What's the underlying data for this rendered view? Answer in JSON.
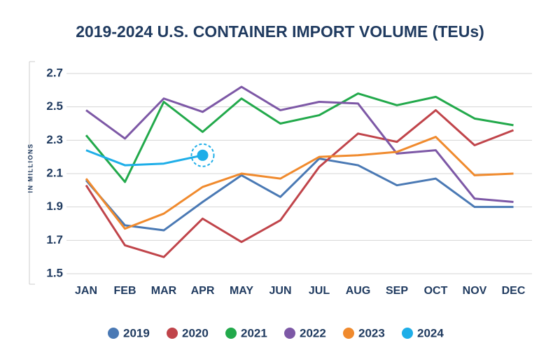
{
  "chart_data": {
    "type": "line",
    "title": "2019-2024 U.S. CONTAINER IMPORT VOLUME (TEUs)",
    "y_label": "IN MILLIONS",
    "categories": [
      "JAN",
      "FEB",
      "MAR",
      "APR",
      "MAY",
      "JUN",
      "JUL",
      "AUG",
      "SEP",
      "OCT",
      "NOV",
      "DEC"
    ],
    "series": [
      {
        "name": "2019",
        "color": "#4a79b4",
        "values": [
          2.06,
          1.79,
          1.76,
          1.93,
          2.09,
          1.96,
          2.19,
          2.15,
          2.03,
          2.07,
          1.9,
          1.9
        ]
      },
      {
        "name": "2020",
        "color": "#c0444a",
        "values": [
          2.03,
          1.67,
          1.6,
          1.83,
          1.69,
          1.82,
          2.14,
          2.34,
          2.29,
          2.48,
          2.27,
          2.36
        ]
      },
      {
        "name": "2021",
        "color": "#22a94b",
        "values": [
          2.33,
          2.05,
          2.53,
          2.35,
          2.55,
          2.4,
          2.45,
          2.58,
          2.51,
          2.56,
          2.43,
          2.39
        ]
      },
      {
        "name": "2022",
        "color": "#7d58a6",
        "values": [
          2.48,
          2.31,
          2.55,
          2.47,
          2.62,
          2.48,
          2.53,
          2.52,
          2.22,
          2.24,
          1.95,
          1.93
        ]
      },
      {
        "name": "2023",
        "color": "#f08a2d",
        "values": [
          2.07,
          1.77,
          1.86,
          2.02,
          2.1,
          2.07,
          2.2,
          2.21,
          2.23,
          2.32,
          2.09,
          2.1
        ]
      },
      {
        "name": "2024",
        "color": "#1eaee8",
        "values": [
          2.24,
          2.15,
          2.16,
          2.21,
          null,
          null,
          null,
          null,
          null,
          null,
          null,
          null
        ]
      }
    ],
    "ylim": [
      1.5,
      2.7
    ],
    "yticks": [
      1.5,
      1.7,
      1.9,
      2.1,
      2.3,
      2.5,
      2.7
    ],
    "grid": true,
    "legend": "bottom"
  }
}
